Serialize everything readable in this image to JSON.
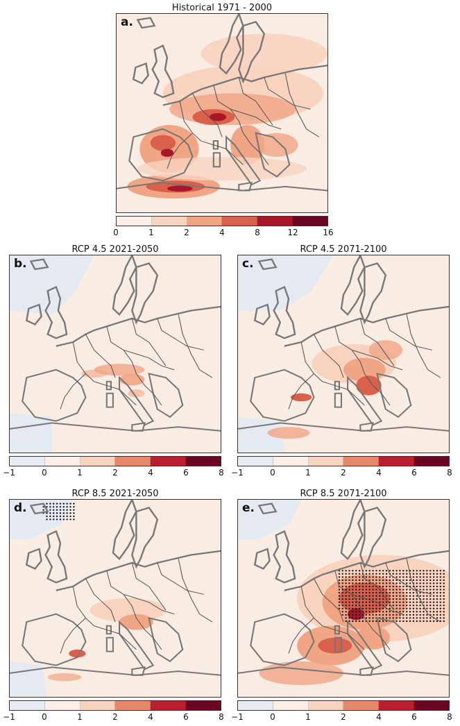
{
  "panels": [
    {
      "id": "a",
      "letter": "a.",
      "title": "Historical 1971 - 2000",
      "colorbar": {
        "ticks": [
          "0",
          "1",
          "2",
          "4",
          "8",
          "12",
          "16"
        ],
        "colors": [
          "#fbefe7",
          "#f8d3bf",
          "#f0a584",
          "#d9604b",
          "#a8162a",
          "#6a0620"
        ]
      }
    },
    {
      "id": "b",
      "letter": "b.",
      "title": "RCP 4.5 2021-2050",
      "colorbar": {
        "ticks": [
          "−1",
          "0",
          "1",
          "2",
          "4",
          "6",
          "8"
        ],
        "colors": [
          "#e6ecf2",
          "#fbefe7",
          "#f8d3bf",
          "#e7876b",
          "#b91f2e",
          "#6a0620"
        ]
      }
    },
    {
      "id": "c",
      "letter": "c.",
      "title": "RCP 4.5 2071-2100",
      "colorbar": {
        "ticks": [
          "−1",
          "0",
          "1",
          "2",
          "4",
          "6",
          "8"
        ],
        "colors": [
          "#e6ecf2",
          "#fbefe7",
          "#f8d3bf",
          "#e7876b",
          "#b91f2e",
          "#6a0620"
        ]
      }
    },
    {
      "id": "d",
      "letter": "d.",
      "title": "RCP 8.5 2021-2050",
      "colorbar": {
        "ticks": [
          "−1",
          "0",
          "1",
          "2",
          "4",
          "6",
          "8"
        ],
        "colors": [
          "#e6ecf2",
          "#fbefe7",
          "#f8d3bf",
          "#e7876b",
          "#b91f2e",
          "#6a0620"
        ]
      }
    },
    {
      "id": "e",
      "letter": "e.",
      "title": "RCP 8.5 2071-2100",
      "colorbar": {
        "ticks": [
          "−1",
          "0",
          "1",
          "2",
          "4",
          "6",
          "8"
        ],
        "colors": [
          "#e6ecf2",
          "#fbefe7",
          "#f8d3bf",
          "#e7876b",
          "#b91f2e",
          "#6a0620"
        ]
      }
    }
  ],
  "colors": {
    "coast": "#777777",
    "border": "#555555",
    "land_bg": "#f9ece3",
    "sea_blue": "#e3eaf1"
  }
}
